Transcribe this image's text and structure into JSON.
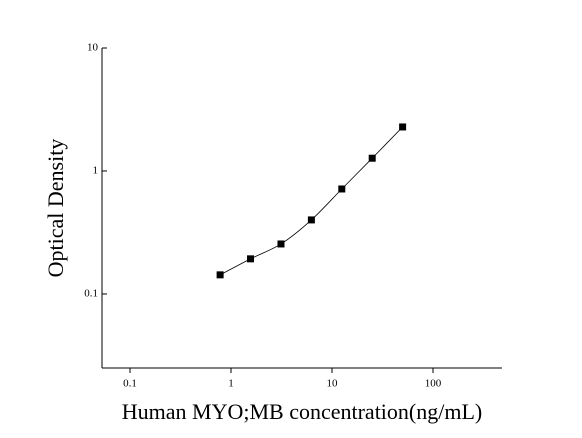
{
  "chart_data": {
    "type": "scatter",
    "x_label": "Human MYO;MB concentration(ng/mL)",
    "y_label": "Optical Density",
    "series": [
      {
        "x": [
          0.78,
          1.56,
          3.125,
          6.25,
          12.5,
          25,
          50
        ],
        "values": [
          0.143,
          0.193,
          0.255,
          0.4,
          0.714,
          1.27,
          2.28
        ],
        "color": "#000000"
      }
    ],
    "xlim": [
      0.0528,
      482
    ],
    "ylim": [
      0.025,
      10
    ],
    "xticks": [
      0.1,
      1,
      10,
      100
    ],
    "yticks": [
      0.1,
      1,
      10
    ],
    "xscale": "log",
    "yscale": "log",
    "fit_curve": true
  }
}
